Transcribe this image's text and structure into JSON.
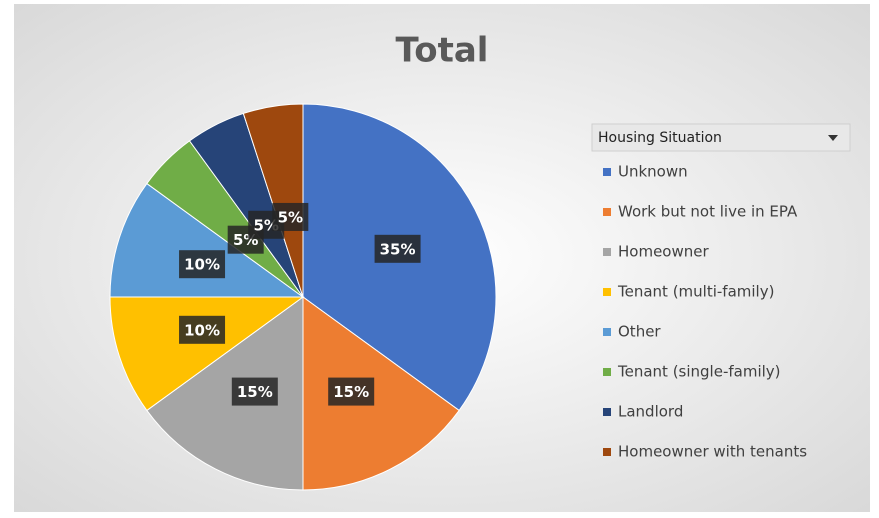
{
  "chart_data": {
    "type": "pie",
    "title": "Total",
    "legend_title": "Housing Situation",
    "categories": [
      "Unknown",
      "Work but not live in EPA",
      "Homeowner",
      "Tenant (multi-family)",
      "Other",
      "Tenant (single-family)",
      "Landlord",
      "Homeowner with tenants"
    ],
    "values": [
      35,
      15,
      15,
      10,
      10,
      5,
      5,
      5
    ],
    "value_labels": [
      "35%",
      "15%",
      "15%",
      "10%",
      "10%",
      "5%",
      "5%",
      "5%"
    ],
    "colors": [
      "#4472c4",
      "#ed7d31",
      "#a5a5a5",
      "#ffc000",
      "#5b9bd5",
      "#70ad47",
      "#264478",
      "#9e480e"
    ]
  }
}
